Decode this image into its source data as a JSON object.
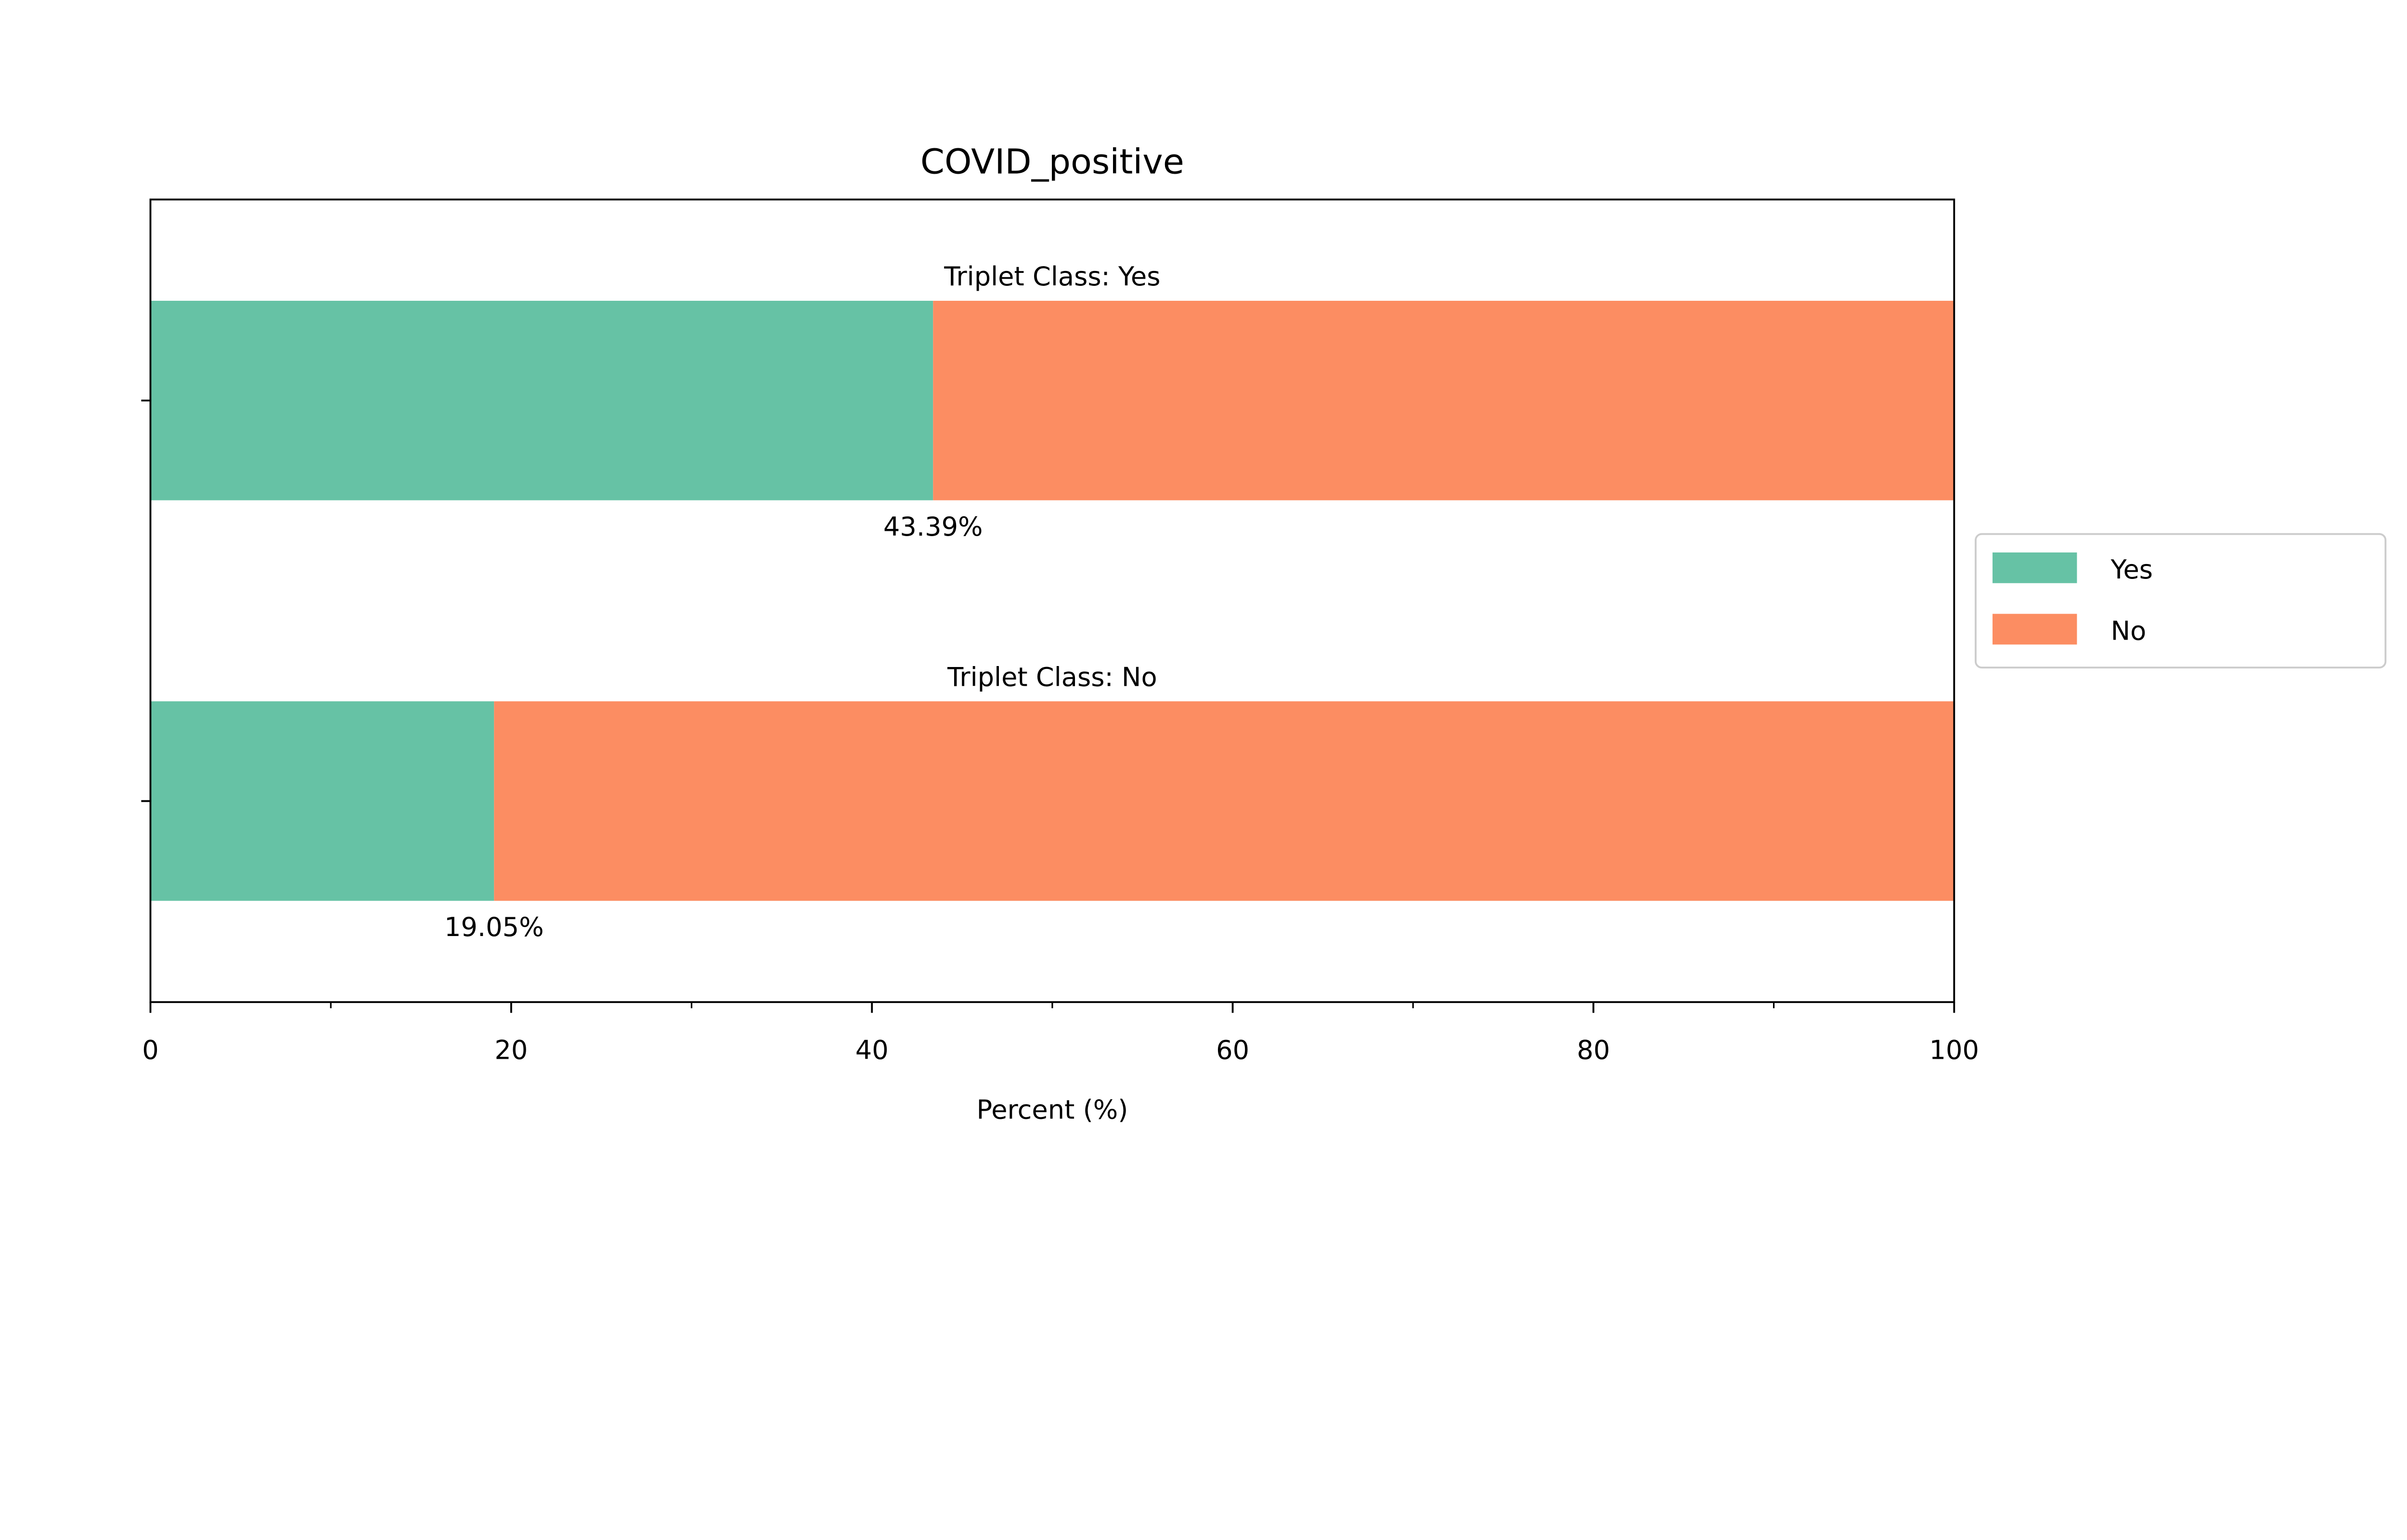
{
  "chart_data": {
    "type": "bar",
    "orientation": "horizontal",
    "stacked": true,
    "title": "COVID_positive",
    "xlabel": "Percent (%)",
    "ylabel": "",
    "xlim": [
      0,
      100
    ],
    "x_ticks": [
      "0",
      "20",
      "40",
      "60",
      "80",
      "100"
    ],
    "x_minor_ticks": [
      10,
      30,
      50,
      70,
      90
    ],
    "grid": false,
    "legend_position": "right",
    "categories": [
      {
        "label": "Triplet Class: Yes",
        "yes_label": "43.39%"
      },
      {
        "label": "Triplet Class: No",
        "yes_label": "19.05%"
      }
    ],
    "series": [
      {
        "name": "Yes",
        "color": "#66c2a5",
        "values": [
          43.39,
          19.05
        ]
      },
      {
        "name": "No",
        "color": "#fc8d62",
        "values": [
          56.61,
          80.95
        ]
      }
    ]
  }
}
